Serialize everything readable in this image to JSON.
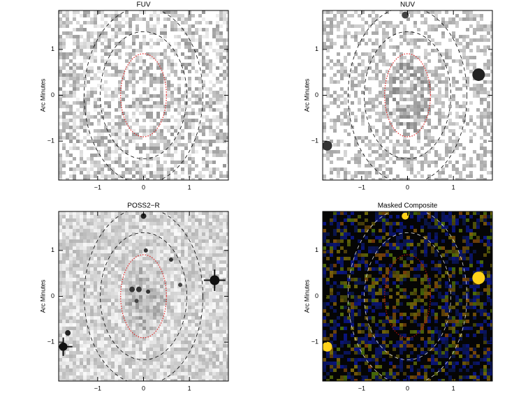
{
  "chart_data": [
    {
      "type": "image",
      "title": "FUV",
      "ylabel": "Arc Minutes",
      "style": "fuv",
      "xlim": [
        -1.85,
        1.85
      ],
      "ylim": [
        -1.85,
        1.85
      ],
      "xticks": [
        {
          "value": -1,
          "label": "−1"
        },
        0,
        1
      ],
      "yticks": [
        {
          "value": -1,
          "label": "−1"
        },
        0,
        1
      ]
    },
    {
      "type": "image",
      "title": "NUV",
      "ylabel": "Arc Minutes",
      "style": "nuv",
      "xlim": [
        -1.85,
        1.85
      ],
      "ylim": [
        -1.85,
        1.85
      ],
      "xticks": [
        {
          "value": -1,
          "label": "−1"
        },
        0,
        1
      ],
      "yticks": [
        {
          "value": -1,
          "label": "−1"
        },
        0,
        1
      ]
    },
    {
      "type": "image",
      "title": "POSS2−R",
      "ylabel": "Arc Minutes",
      "style": "poss",
      "xlim": [
        -1.85,
        1.85
      ],
      "ylim": [
        -1.85,
        1.85
      ],
      "xticks": [
        {
          "value": -1,
          "label": "−1"
        },
        0,
        1
      ],
      "yticks": [
        {
          "value": -1,
          "label": "−1"
        },
        0,
        1
      ]
    },
    {
      "type": "image",
      "title": "Masked Composite",
      "ylabel": "Arc Minutes",
      "style": "composite",
      "xlim": [
        -1.85,
        1.85
      ],
      "ylim": [
        -1.85,
        1.85
      ],
      "xticks": [
        {
          "value": -1,
          "label": "−1"
        },
        0,
        1
      ],
      "yticks": [
        {
          "value": -1,
          "label": "−1"
        },
        0,
        1
      ]
    }
  ]
}
